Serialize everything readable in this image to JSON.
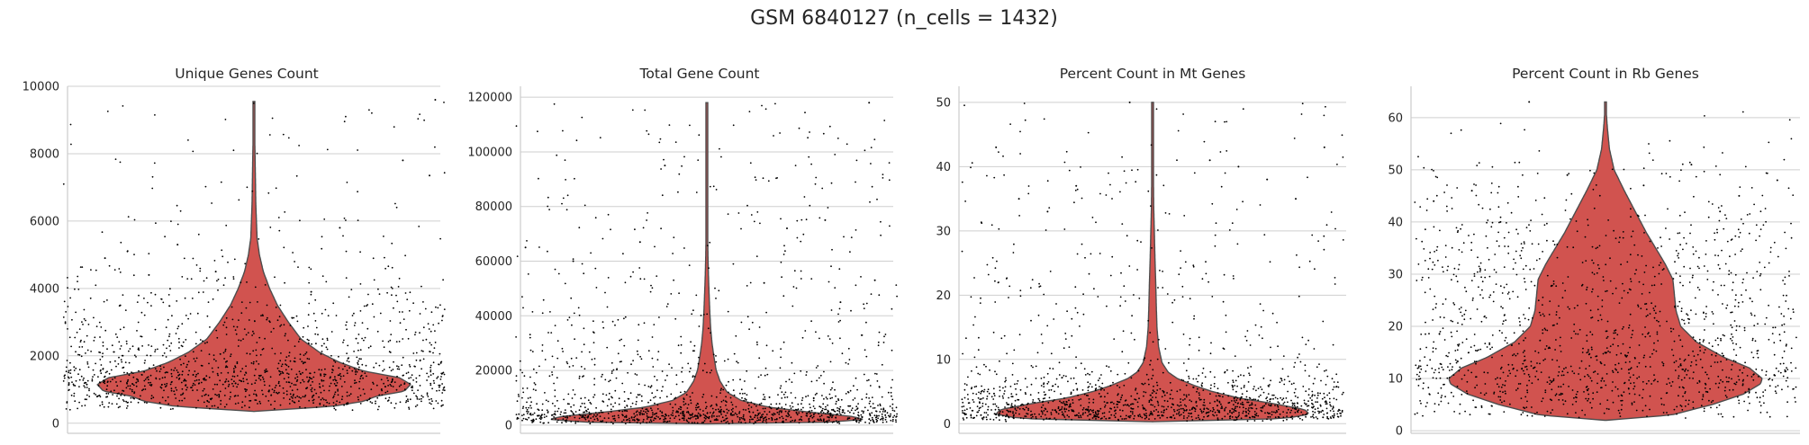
{
  "figure": {
    "suptitle": "GSM 6840127 (n_cells = 1432)"
  },
  "colors": {
    "violin_fill": "#d1534f",
    "violin_edge": "#4d4d4d",
    "points": "#000000",
    "grid": "#cfcfcf"
  },
  "chart_data": [
    {
      "type": "violin",
      "title": "Unique Genes Count",
      "xlabel": "",
      "ylabel": "",
      "ylim": [
        -300,
        10000
      ],
      "yticks": [
        0,
        2000,
        4000,
        6000,
        8000,
        10000
      ],
      "grid": "horizontal",
      "n_points": 1432,
      "point_max": 9600,
      "density_profile": [
        [
          350,
          0.0
        ],
        [
          500,
          0.5
        ],
        [
          650,
          0.7
        ],
        [
          800,
          0.78
        ],
        [
          950,
          0.96
        ],
        [
          1150,
          1.0
        ],
        [
          1350,
          0.93
        ],
        [
          1550,
          0.7
        ],
        [
          1800,
          0.55
        ],
        [
          2100,
          0.42
        ],
        [
          2500,
          0.3
        ],
        [
          3000,
          0.22
        ],
        [
          3500,
          0.15
        ],
        [
          4000,
          0.1
        ],
        [
          4500,
          0.06
        ],
        [
          5000,
          0.035
        ],
        [
          5500,
          0.02
        ],
        [
          6500,
          0.012
        ],
        [
          8000,
          0.007
        ],
        [
          9550,
          0.0
        ]
      ],
      "points_sample": [
        [
          -0.78,
          4900
        ],
        [
          -0.55,
          4400
        ],
        [
          -0.4,
          5300
        ],
        [
          0.95,
          9600
        ],
        [
          0.45,
          5800
        ],
        [
          0.78,
          7800
        ],
        [
          0.92,
          7350
        ],
        [
          -0.7,
          3500
        ],
        [
          0.3,
          3900
        ],
        [
          -0.2,
          4500
        ]
      ]
    },
    {
      "type": "violin",
      "title": "Total Gene Count",
      "xlabel": "",
      "ylabel": "",
      "ylim": [
        -3000,
        124000
      ],
      "yticks": [
        0,
        20000,
        40000,
        60000,
        80000,
        100000,
        120000
      ],
      "grid": "horizontal",
      "n_points": 1432,
      "point_max": 118000,
      "density_profile": [
        [
          500,
          0.0
        ],
        [
          1000,
          0.75
        ],
        [
          2000,
          1.0
        ],
        [
          3000,
          0.95
        ],
        [
          4500,
          0.7
        ],
        [
          6500,
          0.4
        ],
        [
          9000,
          0.22
        ],
        [
          12000,
          0.13
        ],
        [
          16000,
          0.085
        ],
        [
          20000,
          0.06
        ],
        [
          25000,
          0.045
        ],
        [
          30000,
          0.033
        ],
        [
          35000,
          0.025
        ],
        [
          40000,
          0.02
        ],
        [
          47000,
          0.015
        ],
        [
          55000,
          0.01
        ],
        [
          62000,
          0.007
        ],
        [
          75000,
          0.004
        ],
        [
          95000,
          0.003
        ],
        [
          118000,
          0.0
        ]
      ],
      "points_sample": [
        [
          -0.95,
          65000
        ],
        [
          -0.35,
          67000
        ],
        [
          -0.22,
          95000
        ],
        [
          0.85,
          118000
        ],
        [
          0.42,
          72000
        ],
        [
          0.62,
          75000
        ],
        [
          0.88,
          53000
        ],
        [
          -0.7,
          60000
        ],
        [
          0.3,
          52000
        ],
        [
          0.7,
          45000
        ]
      ]
    },
    {
      "type": "violin",
      "title": "Percent Count in Mt Genes",
      "xlabel": "",
      "ylabel": "",
      "ylim": [
        -1.5,
        52.5
      ],
      "yticks": [
        0,
        10,
        20,
        30,
        40,
        50
      ],
      "grid": "horizontal",
      "n_points": 1432,
      "point_max": 50,
      "density_profile": [
        [
          0.3,
          0.0
        ],
        [
          0.8,
          0.85
        ],
        [
          1.5,
          1.0
        ],
        [
          2.2,
          0.97
        ],
        [
          3.0,
          0.8
        ],
        [
          4.0,
          0.55
        ],
        [
          5.0,
          0.38
        ],
        [
          6.0,
          0.26
        ],
        [
          7.0,
          0.16
        ],
        [
          8.0,
          0.1
        ],
        [
          9.5,
          0.06
        ],
        [
          12.0,
          0.038
        ],
        [
          15.0,
          0.028
        ],
        [
          18.0,
          0.024
        ],
        [
          22.0,
          0.02
        ],
        [
          26.0,
          0.015
        ],
        [
          30.0,
          0.011
        ],
        [
          34.0,
          0.007
        ],
        [
          40.0,
          0.005
        ],
        [
          46.0,
          0.003
        ],
        [
          50.0,
          0.0
        ]
      ],
      "points_sample": [
        [
          -0.82,
          43
        ],
        [
          -0.4,
          37
        ],
        [
          -0.12,
          50
        ],
        [
          0.45,
          40
        ],
        [
          0.9,
          43
        ],
        [
          -0.7,
          35
        ],
        [
          0.3,
          41
        ],
        [
          0.6,
          38
        ],
        [
          -0.55,
          33
        ],
        [
          0.75,
          35
        ]
      ]
    },
    {
      "type": "violin",
      "title": "Percent Count in Rb Genes",
      "xlabel": "",
      "ylabel": "",
      "ylim": [
        -0.5,
        66
      ],
      "yticks": [
        0,
        10,
        20,
        30,
        40,
        50,
        60
      ],
      "grid": "horizontal",
      "n_points": 1432,
      "point_max": 63,
      "density_profile": [
        [
          2.0,
          0.0
        ],
        [
          3.0,
          0.42
        ],
        [
          5.0,
          0.68
        ],
        [
          7.0,
          0.88
        ],
        [
          9.0,
          0.99
        ],
        [
          10.0,
          1.0
        ],
        [
          12.0,
          0.92
        ],
        [
          14.0,
          0.76
        ],
        [
          17.0,
          0.58
        ],
        [
          20.0,
          0.48
        ],
        [
          23.0,
          0.45
        ],
        [
          26.0,
          0.44
        ],
        [
          29.0,
          0.43
        ],
        [
          32.0,
          0.38
        ],
        [
          35.0,
          0.32
        ],
        [
          38.0,
          0.26
        ],
        [
          42.0,
          0.19
        ],
        [
          46.0,
          0.12
        ],
        [
          50.0,
          0.055
        ],
        [
          54.0,
          0.025
        ],
        [
          58.0,
          0.012
        ],
        [
          63.0,
          0.0
        ]
      ],
      "points_sample": [
        [
          -0.4,
          63
        ],
        [
          0.45,
          51
        ],
        [
          -0.7,
          46
        ],
        [
          0.9,
          48
        ],
        [
          0.7,
          45
        ],
        [
          -0.9,
          44
        ],
        [
          0.2,
          47
        ],
        [
          -0.2,
          49
        ],
        [
          0.6,
          42
        ],
        [
          -0.55,
          40
        ]
      ]
    }
  ]
}
